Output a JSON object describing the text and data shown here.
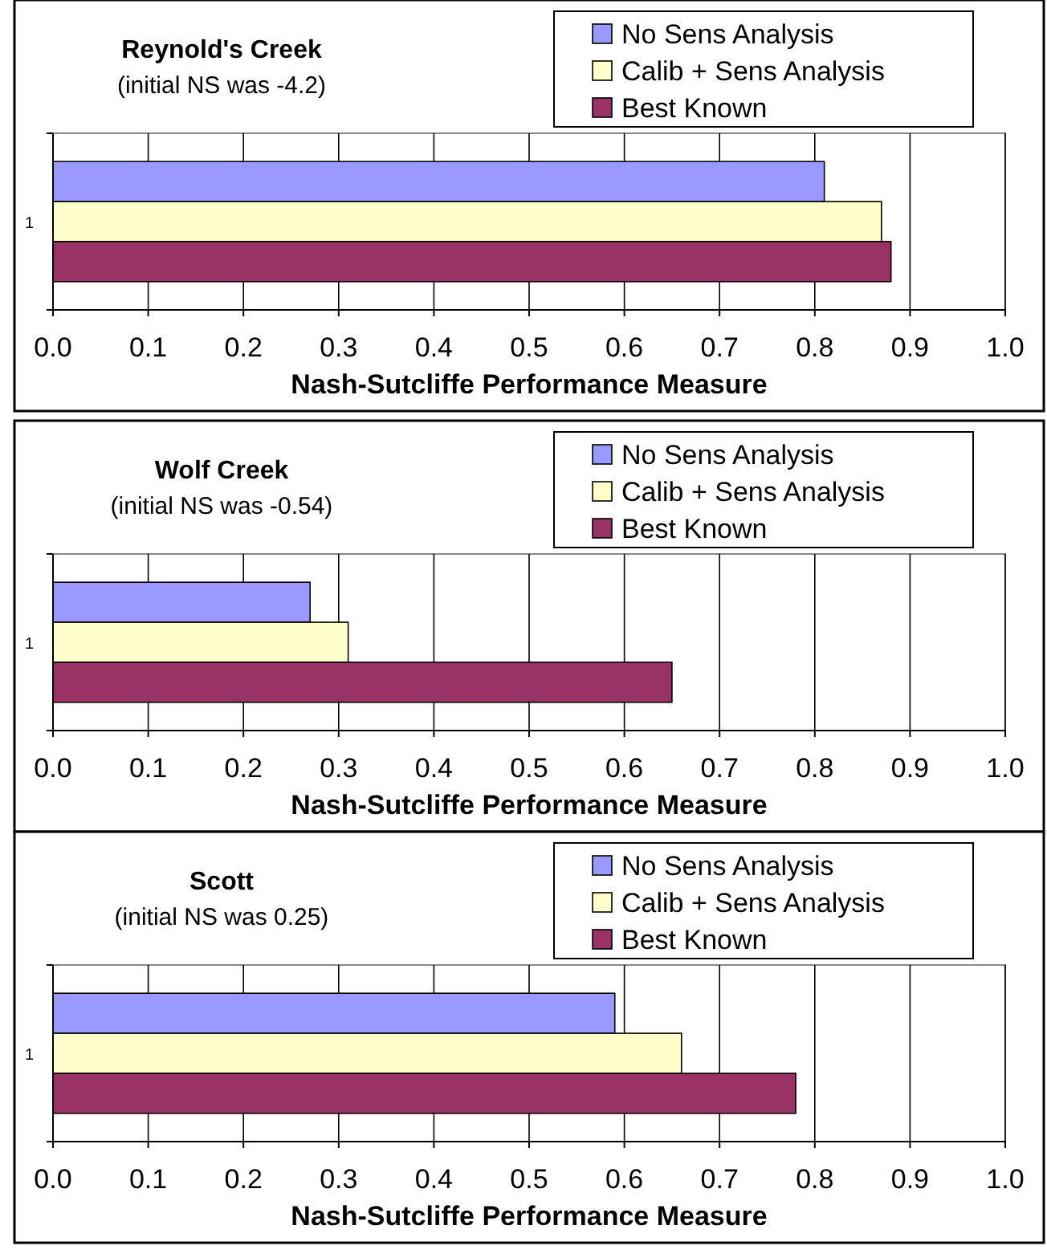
{
  "chart_data": [
    {
      "type": "bar",
      "orientation": "horizontal",
      "title": "Reynold's Creek",
      "subtitle": "(initial NS was -4.2)",
      "xlabel": "Nash-Sutcliffe Performance Measure",
      "categories": [
        "1"
      ],
      "xlim": [
        0,
        1
      ],
      "xticks": [
        {
          "value": 0,
          "label": "0.0"
        },
        {
          "value": 0.1,
          "label": "0.1"
        },
        {
          "value": 0.2,
          "label": "0.2"
        },
        {
          "value": 0.3,
          "label": "0.3"
        },
        {
          "value": 0.4,
          "label": "0.4"
        },
        {
          "value": 0.5,
          "label": "0.5"
        },
        {
          "value": 0.6,
          "label": "0.6"
        },
        {
          "value": 0.7,
          "label": "0.7"
        },
        {
          "value": 0.8,
          "label": "0.8"
        },
        {
          "value": 0.9,
          "label": "0.9"
        },
        {
          "value": 1,
          "label": "1.0"
        }
      ],
      "grid": "x",
      "legend": "top right",
      "series": [
        {
          "name": "No Sens Analysis",
          "color": "#9999ff",
          "values": [
            0.81
          ]
        },
        {
          "name": "Calib + Sens Analysis",
          "color": "#ffffcc",
          "values": [
            0.87
          ]
        },
        {
          "name": "Best Known",
          "color": "#993366",
          "values": [
            0.88
          ]
        }
      ]
    },
    {
      "type": "bar",
      "orientation": "horizontal",
      "title": "Wolf Creek",
      "subtitle": "(initial NS was -0.54)",
      "xlabel": "Nash-Sutcliffe Performance Measure",
      "categories": [
        "1"
      ],
      "xlim": [
        0,
        1
      ],
      "xticks": [
        {
          "value": 0,
          "label": "0.0"
        },
        {
          "value": 0.1,
          "label": "0.1"
        },
        {
          "value": 0.2,
          "label": "0.2"
        },
        {
          "value": 0.3,
          "label": "0.3"
        },
        {
          "value": 0.4,
          "label": "0.4"
        },
        {
          "value": 0.5,
          "label": "0.5"
        },
        {
          "value": 0.6,
          "label": "0.6"
        },
        {
          "value": 0.7,
          "label": "0.7"
        },
        {
          "value": 0.8,
          "label": "0.8"
        },
        {
          "value": 0.9,
          "label": "0.9"
        },
        {
          "value": 1,
          "label": "1.0"
        }
      ],
      "grid": "x",
      "legend": "top right",
      "series": [
        {
          "name": "No Sens Analysis",
          "color": "#9999ff",
          "values": [
            0.27
          ]
        },
        {
          "name": "Calib + Sens Analysis",
          "color": "#ffffcc",
          "values": [
            0.31
          ]
        },
        {
          "name": "Best Known",
          "color": "#993366",
          "values": [
            0.65
          ]
        }
      ]
    },
    {
      "type": "bar",
      "orientation": "horizontal",
      "title": "Scott",
      "subtitle": "(initial NS was 0.25)",
      "xlabel": "Nash-Sutcliffe Performance Measure",
      "categories": [
        "1"
      ],
      "xlim": [
        0,
        1
      ],
      "xticks": [
        {
          "value": 0,
          "label": "0.0"
        },
        {
          "value": 0.1,
          "label": "0.1"
        },
        {
          "value": 0.2,
          "label": "0.2"
        },
        {
          "value": 0.3,
          "label": "0.3"
        },
        {
          "value": 0.4,
          "label": "0.4"
        },
        {
          "value": 0.5,
          "label": "0.5"
        },
        {
          "value": 0.6,
          "label": "0.6"
        },
        {
          "value": 0.7,
          "label": "0.7"
        },
        {
          "value": 0.8,
          "label": "0.8"
        },
        {
          "value": 0.9,
          "label": "0.9"
        },
        {
          "value": 1,
          "label": "1.0"
        }
      ],
      "grid": "x",
      "legend": "top right",
      "series": [
        {
          "name": "No Sens Analysis",
          "color": "#9999ff",
          "values": [
            0.59
          ]
        },
        {
          "name": "Calib + Sens Analysis",
          "color": "#ffffcc",
          "values": [
            0.66
          ]
        },
        {
          "name": "Best Known",
          "color": "#993366",
          "values": [
            0.78
          ]
        }
      ]
    }
  ]
}
